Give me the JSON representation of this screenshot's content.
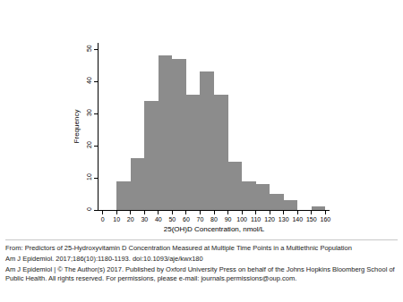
{
  "chart_data": {
    "type": "histogram",
    "x_label": "25(OH)D Concentration, nmol/L",
    "y_label": "Frequency",
    "bins": [
      10,
      20,
      30,
      40,
      50,
      60,
      70,
      80,
      90,
      100,
      110,
      120,
      130,
      140,
      150,
      160
    ],
    "values": [
      9,
      16,
      34,
      48,
      47,
      36,
      43,
      36,
      15,
      9,
      8,
      5,
      3,
      0,
      1
    ],
    "color": "#8c8c8c",
    "xlim": [
      -3,
      163
    ],
    "xticks": [
      0,
      10,
      20,
      30,
      40,
      50,
      60,
      70,
      80,
      90,
      100,
      110,
      120,
      130,
      140,
      150,
      160
    ],
    "ylim": [
      0,
      52
    ],
    "yticks": [
      0,
      10,
      20,
      30,
      40,
      50
    ],
    "grid": false
  },
  "caption": {
    "lines": [
      "From: Predictors of 25-Hydroxyvitamin D Concentration Measured at Multiple Time Points in a Multiethnic Population",
      "Am J Epidemiol. 2017;186(10):1180-1193. doi:10.1093/aje/kwx180",
      "Am J Epidemiol | © The Author(s) 2017. Published by Oxford University Press on behalf of the Johns Hopkins Bloomberg School of Public Health. All rights reserved. For permissions, please e-mail: journals.permissions@oup.com."
    ]
  }
}
